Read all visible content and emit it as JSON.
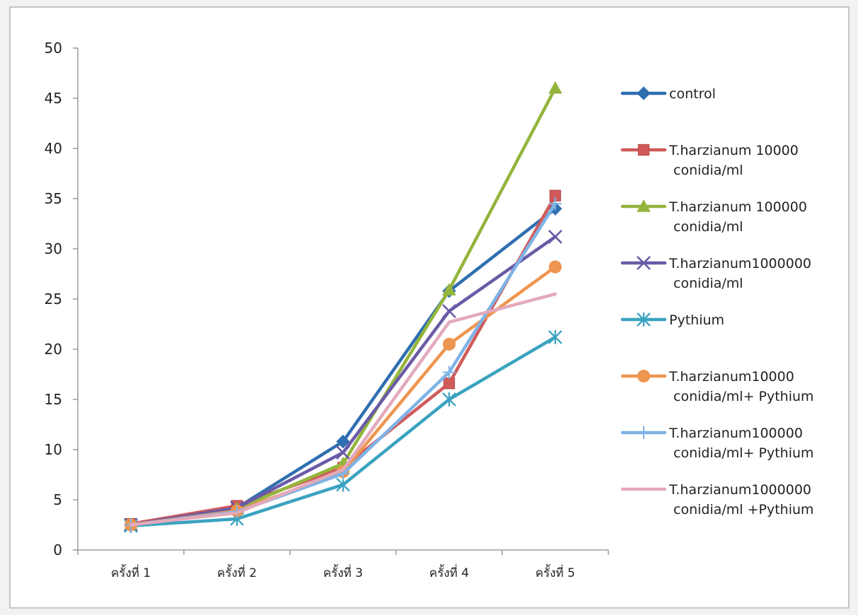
{
  "chart_data": {
    "type": "line",
    "categories": [
      "ครั้งที่ 1",
      "ครั้งที่ 2",
      "ครั้งที่ 3",
      "ครั้งที่ 4",
      "ครั้งที่ 5"
    ],
    "ylim": [
      0,
      50
    ],
    "yticks": [
      0,
      5,
      10,
      15,
      20,
      25,
      30,
      35,
      40,
      45,
      50
    ],
    "grid": false,
    "legend_position": "right",
    "series": [
      {
        "name": "control",
        "label_lines": [
          "control"
        ],
        "color": "#2f6fb0",
        "marker": "diamond",
        "values": [
          2.5,
          4.2,
          10.8,
          25.8,
          34.0
        ]
      },
      {
        "name": "T.harzianum 10000 conidia/ml",
        "label_lines": [
          "T.harzianum 10000",
          "conidia/ml"
        ],
        "color": "#d05a5a",
        "marker": "square",
        "values": [
          2.6,
          4.4,
          8.2,
          16.6,
          35.3
        ]
      },
      {
        "name": "T.harzianum 100000 conidia/ml",
        "label_lines": [
          "T.harzianum 100000",
          "conidia/ml"
        ],
        "color": "#93b53c",
        "marker": "triangle",
        "values": [
          2.5,
          4.1,
          8.6,
          25.9,
          46.0
        ]
      },
      {
        "name": "T.harzianum1000000 conidia/ml",
        "label_lines": [
          "T.harzianum1000000",
          "conidia/ml"
        ],
        "color": "#6a5aa6",
        "marker": "x",
        "values": [
          2.5,
          4.2,
          9.7,
          23.8,
          31.2
        ]
      },
      {
        "name": "Pythium",
        "label_lines": [
          "Pythium"
        ],
        "color": "#3aa3c0",
        "marker": "star",
        "values": [
          2.4,
          3.1,
          6.5,
          15.0,
          21.2
        ]
      },
      {
        "name": "T.harzianum10000 conidia/ml+ Pythium",
        "label_lines": [
          "T.harzianum10000",
          "conidia/ml+ Pythium"
        ],
        "color": "#ee9550",
        "marker": "circle",
        "values": [
          2.5,
          3.9,
          7.8,
          20.5,
          28.2
        ]
      },
      {
        "name": "T.harzianum100000 conidia/ml+ Pythium",
        "label_lines": [
          "T.harzianum100000",
          "conidia/ml+ Pythium"
        ],
        "color": "#7fb3e6",
        "marker": "plus",
        "values": [
          2.5,
          3.8,
          7.6,
          17.7,
          34.5
        ]
      },
      {
        "name": "T.harzianum1000000 conidia/ml +Pythium",
        "label_lines": [
          "T.harzianum1000000",
          "conidia/ml +Pythium"
        ],
        "color": "#e3a9ba",
        "marker": "none",
        "values": [
          2.5,
          3.7,
          8.0,
          22.7,
          25.5
        ]
      }
    ]
  }
}
